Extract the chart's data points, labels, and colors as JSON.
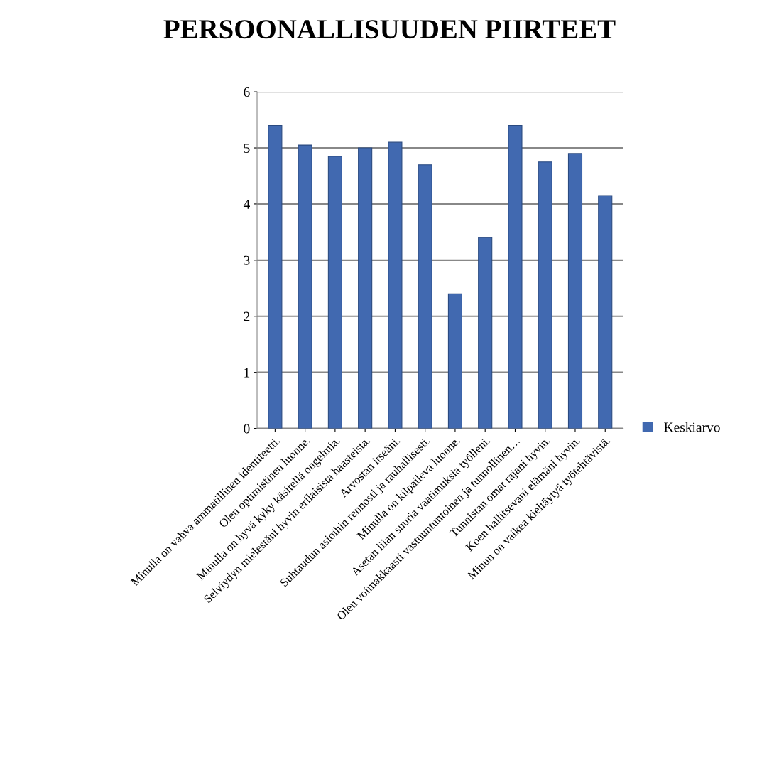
{
  "chart_data": {
    "type": "bar",
    "title": "PERSOONALLISUUDEN PIIRTEET",
    "categories": [
      "Minulla on vahva ammatillinen identiteetti.",
      "Olen optimistinen luonne.",
      "Minulla on hyvä kyky käsitellä ongelmia.",
      "Selviydyn mielestäni hyvin erilaisista haasteista.",
      "Arvostan itseäni.",
      "Suhtaudun asioihin rennosti ja rauhallisesti.",
      "Minulla on kilpaileva luonne.",
      "Asetan liian suuria vaatimuksia työlleni.",
      "Olen voimakkaasti vastuuntuntoinen ja tunnollinen…",
      "Tunnistan omat rajani hyvin.",
      "Koen hallitsevani elämäni hyvin.",
      "Minun on vaikea kieltäytyä työtehtävistä."
    ],
    "series": [
      {
        "name": "Keskiarvo",
        "color": "#4169b0",
        "values": [
          5.4,
          5.05,
          4.85,
          5.0,
          5.1,
          4.7,
          2.4,
          3.4,
          5.4,
          4.75,
          4.9,
          4.15
        ]
      }
    ],
    "ylim": [
      0,
      6
    ],
    "yticks": [
      0,
      1,
      2,
      3,
      4,
      5,
      6
    ],
    "grid": "y",
    "legend": "right"
  }
}
